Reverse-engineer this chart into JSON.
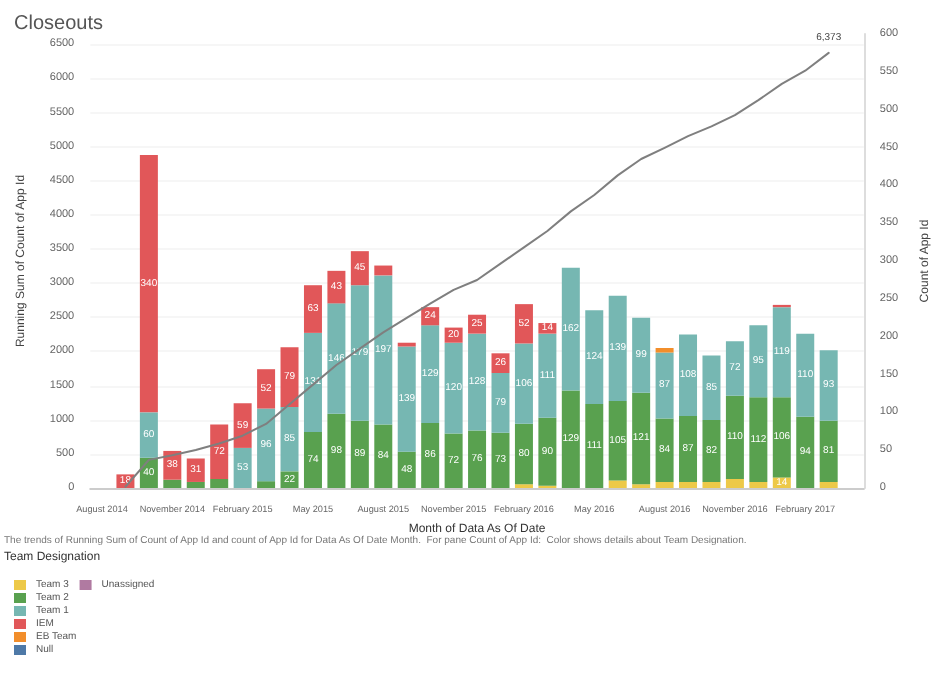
{
  "chart_data": {
    "type": "bar",
    "title": "Closeouts",
    "xlabel": "Month of Data As Of Date",
    "ylabel": "Running Sum of Count of App Id",
    "y2label": "Count of App Id",
    "legend_title": "Team Designation",
    "annotations": [
      "The trends of Running Sum of Count of App Id and count of App Id for Data As Of Date Month.  For pane Count of App Id:  Color shows details about Team Designation."
    ],
    "x": [
      "2014-09",
      "2014-10",
      "2014-11",
      "2014-12",
      "2015-01",
      "2015-02",
      "2015-03",
      "2015-04",
      "2015-05",
      "2015-06",
      "2015-07",
      "2015-08",
      "2015-09",
      "2015-10",
      "2015-11",
      "2015-12",
      "2016-01",
      "2016-02",
      "2016-03",
      "2016-04",
      "2016-05",
      "2016-06",
      "2016-07",
      "2016-08",
      "2016-09",
      "2016-10",
      "2016-11",
      "2016-12",
      "2017-01",
      "2017-02",
      "2017-03"
    ],
    "xlim": [
      "2014-07-16",
      "2017-04-16"
    ],
    "xticks": [
      {
        "value": "2014-08",
        "label": "August 2014"
      },
      {
        "value": "2014-11",
        "label": "November 2014"
      },
      {
        "value": "2015-02",
        "label": "February 2015"
      },
      {
        "value": "2015-05",
        "label": "May 2015"
      },
      {
        "value": "2015-08",
        "label": "August 2015"
      },
      {
        "value": "2015-11",
        "label": "November 2015"
      },
      {
        "value": "2016-02",
        "label": "February 2016"
      },
      {
        "value": "2016-05",
        "label": "May 2016"
      },
      {
        "value": "2016-08",
        "label": "August 2016"
      },
      {
        "value": "2016-11",
        "label": "November 2016"
      },
      {
        "value": "2017-02",
        "label": "February 2017"
      }
    ],
    "ylim": [
      0,
      6650
    ],
    "yticks": [
      0,
      500,
      1000,
      1500,
      2000,
      2500,
      3000,
      3500,
      4000,
      4500,
      5000,
      5500,
      6000,
      6500
    ],
    "y2lim": [
      0,
      600
    ],
    "y2ticks": [
      0,
      50,
      100,
      150,
      200,
      250,
      300,
      350,
      400,
      450,
      500,
      550,
      600
    ],
    "stacked": true,
    "grid": "y",
    "legend": "bottom left",
    "marker": "none",
    "series": [
      {
        "name": "Team 3",
        "color": "#edc948",
        "axis": "y2",
        "values": [
          null,
          null,
          null,
          null,
          null,
          null,
          null,
          null,
          null,
          null,
          null,
          null,
          null,
          null,
          null,
          null,
          null,
          5,
          3,
          null,
          null,
          10,
          5,
          8,
          8,
          8,
          12,
          8,
          14,
          null,
          8
        ],
        "value_labels": [
          null,
          null,
          null,
          null,
          null,
          null,
          null,
          null,
          null,
          null,
          null,
          null,
          null,
          null,
          null,
          null,
          null,
          null,
          null,
          null,
          null,
          null,
          null,
          null,
          null,
          null,
          null,
          null,
          "14",
          null,
          null
        ]
      },
      {
        "name": "Team 2",
        "color": "#59a14f",
        "axis": "y2",
        "values": [
          null,
          40,
          11,
          8,
          12,
          null,
          9,
          22,
          74,
          98,
          89,
          84,
          48,
          86,
          72,
          76,
          73,
          80,
          90,
          129,
          111,
          105,
          121,
          84,
          87,
          82,
          110,
          112,
          106,
          94,
          81
        ],
        "value_labels": [
          null,
          "40",
          null,
          null,
          null,
          null,
          null,
          "22",
          "74",
          "98",
          "89",
          "84",
          "48",
          "86",
          "72",
          "76",
          "73",
          "80",
          "90",
          "129",
          "111",
          "105",
          "121",
          "84",
          "87",
          "82",
          "110",
          "112",
          "106",
          "94",
          "81"
        ]
      },
      {
        "name": "Team 1",
        "color": "#76b7b2",
        "axis": "y2",
        "values": [
          null,
          60,
          null,
          null,
          null,
          53,
          96,
          85,
          131,
          146,
          179,
          197,
          139,
          129,
          120,
          128,
          79,
          106,
          111,
          162,
          124,
          139,
          99,
          87,
          108,
          85,
          72,
          95,
          119,
          110,
          93
        ],
        "value_labels": [
          null,
          "60",
          null,
          null,
          null,
          "53",
          "96",
          "85",
          "131",
          "146",
          "179",
          "197",
          "139",
          "129",
          "120",
          "128",
          "79",
          "106",
          "111",
          "162",
          "124",
          "139",
          "99",
          "87",
          "108",
          "85",
          "72",
          "95",
          "119",
          "110",
          "93"
        ]
      },
      {
        "name": "IEM",
        "color": "#e15759",
        "axis": "y2",
        "values": [
          18,
          340,
          38,
          31,
          72,
          59,
          52,
          79,
          63,
          43,
          45,
          13,
          5,
          24,
          20,
          25,
          26,
          52,
          14,
          null,
          null,
          null,
          null,
          null,
          null,
          null,
          null,
          null,
          3,
          null,
          null
        ],
        "value_labels": [
          "18",
          "340",
          "38",
          "31",
          "72",
          "59",
          "52",
          "79",
          "63",
          "43",
          "45",
          null,
          null,
          "24",
          "20",
          "25",
          "26",
          "52",
          "14",
          null,
          null,
          null,
          null,
          null,
          null,
          null,
          null,
          null,
          null,
          null,
          null
        ]
      },
      {
        "name": "EB Team",
        "color": "#f28e2b",
        "axis": "y2",
        "values": [
          null,
          null,
          null,
          null,
          null,
          null,
          null,
          null,
          null,
          null,
          null,
          null,
          null,
          null,
          null,
          null,
          null,
          null,
          null,
          null,
          null,
          null,
          null,
          6,
          null,
          null,
          null,
          null,
          null,
          null,
          null
        ]
      },
      {
        "name": "Null",
        "color": "#4e79a7",
        "axis": "y2",
        "values": [
          null,
          null,
          null,
          null,
          null,
          null,
          null,
          null,
          null,
          null,
          null,
          null,
          null,
          null,
          null,
          null,
          null,
          null,
          null,
          null,
          null,
          null,
          null,
          null,
          null,
          null,
          null,
          null,
          null,
          null,
          null
        ]
      },
      {
        "name": "Unassigned",
        "color": "#b07aa1",
        "axis": "y2",
        "values": [
          null,
          null,
          null,
          null,
          null,
          null,
          null,
          null,
          null,
          null,
          null,
          null,
          null,
          null,
          null,
          null,
          null,
          null,
          null,
          null,
          null,
          null,
          null,
          null,
          null,
          null,
          null,
          null,
          null,
          null,
          null
        ]
      },
      {
        "type": "line",
        "color": "#7f7f7f",
        "axis": "y",
        "line_style": "solid",
        "values": [
          18,
          412,
          479,
          556,
          651,
          766,
          939,
          1226,
          1514,
          1801,
          2041,
          2280,
          2491,
          2702,
          2903,
          3046,
          3286,
          3525,
          3765,
          4052,
          4292,
          4579,
          4819,
          4982,
          5154,
          5298,
          5461,
          5681,
          5920,
          6112,
          6373
        ],
        "value_labels": [
          null,
          null,
          null,
          null,
          null,
          null,
          null,
          null,
          null,
          null,
          null,
          null,
          null,
          null,
          null,
          null,
          null,
          null,
          null,
          null,
          null,
          null,
          null,
          null,
          null,
          null,
          null,
          null,
          null,
          null,
          "6,373"
        ]
      }
    ]
  }
}
